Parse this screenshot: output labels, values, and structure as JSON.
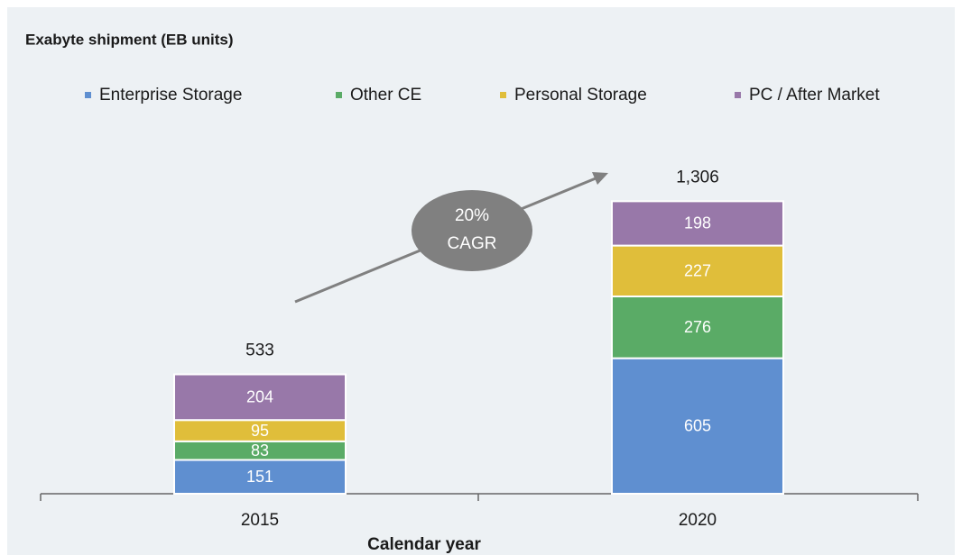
{
  "chart_data": {
    "type": "stacked-bar",
    "title": "Exabyte shipment (EB units)",
    "x_label": "Calendar year",
    "categories": [
      "2015",
      "2020"
    ],
    "series": [
      {
        "name": "Enterprise Storage",
        "color": "#5f8fd0",
        "values": [
          151,
          605
        ]
      },
      {
        "name": "Other CE",
        "color": "#5aab66",
        "values": [
          83,
          276
        ]
      },
      {
        "name": "Personal Storage",
        "color": "#e0be3a",
        "values": [
          95,
          227
        ]
      },
      {
        "name": "PC / After Market",
        "color": "#9878a9",
        "values": [
          204,
          198
        ]
      }
    ],
    "totals": {
      "values": [
        533,
        1306
      ],
      "value_labels": [
        "533",
        "1,306"
      ]
    },
    "annotation_lines": [
      "20%",
      "CAGR"
    ],
    "ylim": [
      0,
      1400
    ],
    "legend": "top"
  }
}
